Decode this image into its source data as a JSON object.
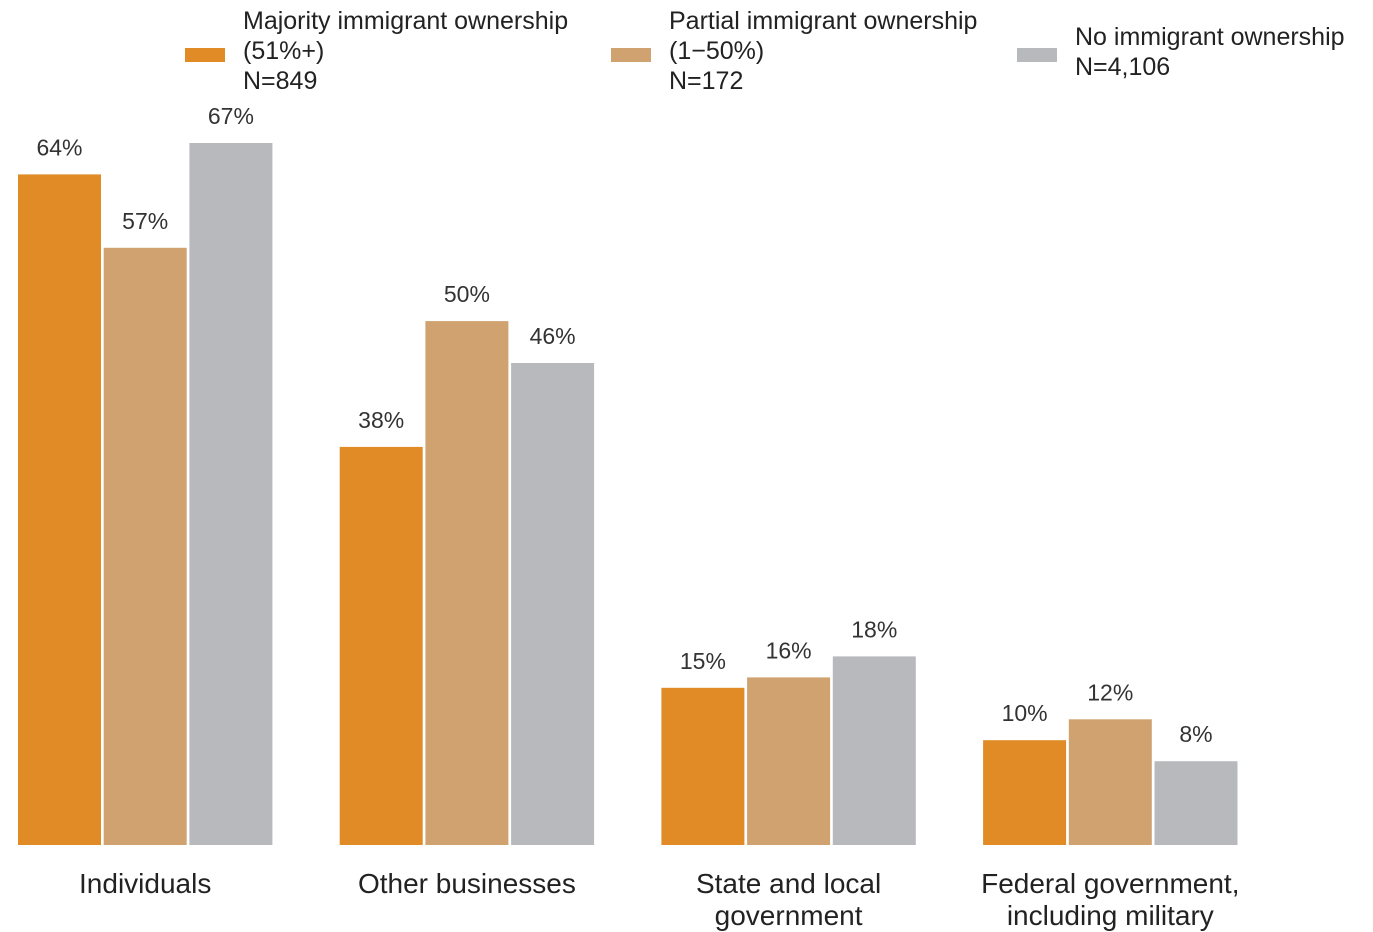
{
  "chart_data": {
    "type": "bar",
    "categories": [
      [
        "Individuals"
      ],
      [
        "Other businesses"
      ],
      [
        "State and local",
        "government"
      ],
      [
        "Federal government,",
        "including military"
      ]
    ],
    "series": [
      {
        "name": "Majority immigrant ownership (51%+) N=849",
        "legend_lines": [
          "Majority immigrant ownership",
          "(51%+)",
          "N=849"
        ],
        "color": "#e08b26",
        "values": [
          64,
          38,
          15,
          10
        ]
      },
      {
        "name": "Partial immigrant ownership (1−50%) N=172",
        "legend_lines": [
          "Partial immigrant ownership",
          "(1−50%)",
          "N=172"
        ],
        "color": "#cfa270",
        "values": [
          57,
          50,
          16,
          12
        ]
      },
      {
        "name": "No immigrant ownership N=4,106",
        "legend_lines": [
          "No immigrant ownership",
          "N=4,106"
        ],
        "color": "#b8b9bd",
        "values": [
          67,
          46,
          18,
          8
        ]
      }
    ],
    "value_suffix": "%",
    "ylim": [
      0,
      67
    ],
    "title": "",
    "xlabel": "",
    "ylabel": "",
    "grid": false,
    "legend_placement": "top"
  }
}
